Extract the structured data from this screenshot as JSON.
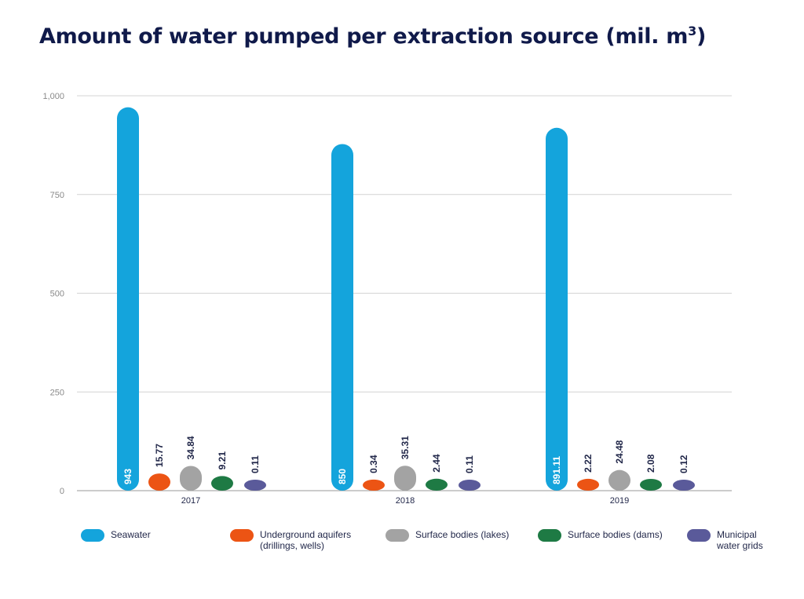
{
  "title": "Amount of water pumped per extraction source (mil. m",
  "title_sup": "3",
  "title_end": ")",
  "chart_data": {
    "type": "bar",
    "categories": [
      "2017",
      "2018",
      "2019"
    ],
    "ylim": [
      0,
      1000
    ],
    "yticks": [
      "0",
      "250",
      "500",
      "750",
      "1,000"
    ],
    "grid": true,
    "legend_position": "bottom",
    "series": [
      {
        "name": "Seawater",
        "color": "#14a4dc",
        "values": [
          943,
          850,
          891.11
        ],
        "labels": [
          "943",
          "850",
          "891.11"
        ]
      },
      {
        "name": "Underground aquifers (drillings, wells)",
        "color": "#ec5414",
        "values": [
          15.77,
          0.34,
          2.22
        ],
        "labels": [
          "15.77",
          "0.34",
          "2.22"
        ]
      },
      {
        "name": "Surface bodies (lakes)",
        "color": "#a3a3a3",
        "values": [
          34.84,
          35.31,
          24.48
        ],
        "labels": [
          "34.84",
          "35.31",
          "24.48"
        ]
      },
      {
        "name": "Surface bodies (dams)",
        "color": "#1e7a44",
        "values": [
          9.21,
          2.44,
          2.08
        ],
        "labels": [
          "9.21",
          "2.44",
          "2.08"
        ]
      },
      {
        "name": "Municipal water grids",
        "color": "#5a5a9a",
        "values": [
          0.11,
          0.11,
          0.12
        ],
        "labels": [
          "0.11",
          "0.11",
          "0.12"
        ]
      }
    ]
  },
  "legend": [
    {
      "line1": "Seawater",
      "line2": "",
      "color": "#14a4dc"
    },
    {
      "line1": "Underground aquifers",
      "line2": "(drillings, wells)",
      "color": "#ec5414"
    },
    {
      "line1": "Surface bodies (lakes)",
      "line2": "",
      "color": "#a3a3a3"
    },
    {
      "line1": "Surface bodies (dams)",
      "line2": "",
      "color": "#1e7a44"
    },
    {
      "line1": "Municipal",
      "line2": "water grids",
      "color": "#5a5a9a"
    }
  ]
}
